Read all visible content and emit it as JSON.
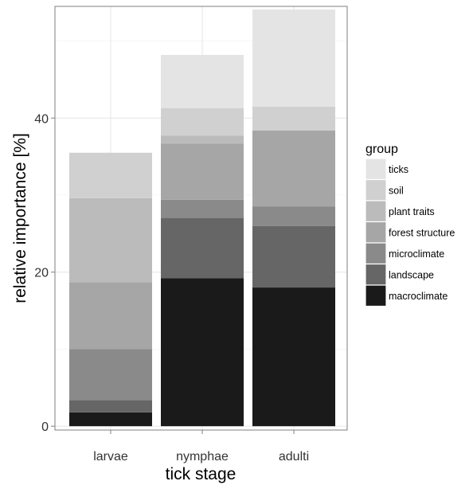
{
  "chart_data": {
    "type": "bar",
    "stacked": true,
    "xlabel": "tick stage",
    "ylabel": "relative importance [%]",
    "categories": [
      "larvae",
      "nymphae",
      "adulti"
    ],
    "ylim": [
      -0.5,
      54.5
    ],
    "yticks": [
      0,
      20,
      40
    ],
    "grid": true,
    "legend": {
      "title": "group",
      "position": "right"
    },
    "series": [
      {
        "name": "macroclimate",
        "color": "#1a1a1a",
        "values": [
          1.8,
          19.2,
          18.0
        ]
      },
      {
        "name": "landscape",
        "color": "#666666",
        "values": [
          1.6,
          7.8,
          8.0
        ]
      },
      {
        "name": "microclimate",
        "color": "#8a8a8a",
        "values": [
          6.6,
          2.4,
          2.5
        ]
      },
      {
        "name": "forest structure",
        "color": "#a6a6a6",
        "values": [
          8.7,
          7.3,
          9.9
        ]
      },
      {
        "name": "plant traits",
        "color": "#bbbbbb",
        "values": [
          10.9,
          1.0,
          0.0
        ]
      },
      {
        "name": "soil",
        "color": "#d0d0d0",
        "values": [
          5.9,
          3.6,
          3.1
        ]
      },
      {
        "name": "ticks",
        "color": "#e4e4e4",
        "values": [
          0.0,
          6.9,
          12.6
        ]
      }
    ]
  }
}
